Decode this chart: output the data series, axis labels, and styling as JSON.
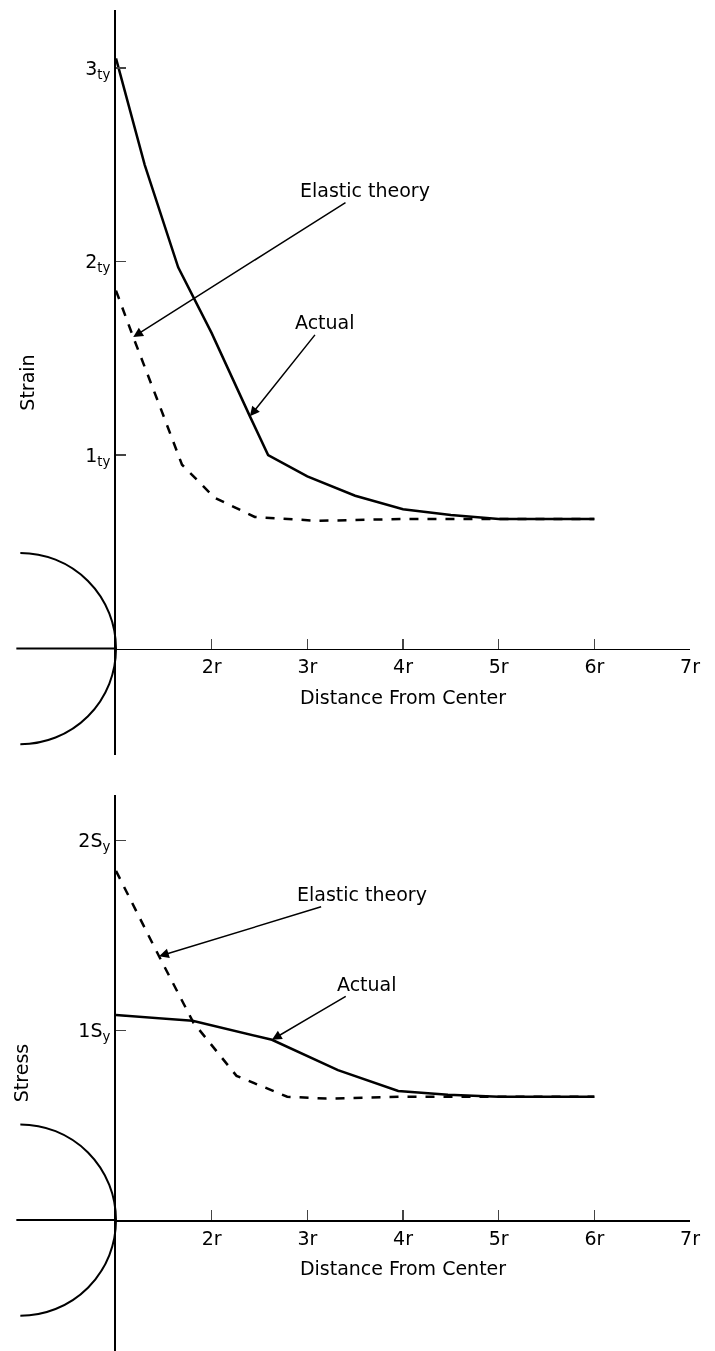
{
  "chart_data": [
    {
      "type": "line",
      "xlabel": "Distance From Center",
      "ylabel": "Strain",
      "xlim": [
        1,
        7
      ],
      "xticks": [
        {
          "value": 2,
          "label": "2r"
        },
        {
          "value": 3,
          "label": "3r"
        },
        {
          "value": 4,
          "label": "4r"
        },
        {
          "value": 5,
          "label": "5r"
        },
        {
          "value": 6,
          "label": "6r"
        },
        {
          "value": 7,
          "label": "7r"
        }
      ],
      "ylim": [
        -0.55,
        3.3
      ],
      "yticks": [
        {
          "value": 1,
          "label": "1$_{ty}$"
        },
        {
          "value": 2,
          "label": "2$_{ty}$"
        },
        {
          "value": 3,
          "label": "3$_{ty}$"
        }
      ],
      "series": [
        {
          "color": "#000000",
          "line_style": "solid",
          "x": [
            1,
            1.3,
            1.65,
            2.0,
            2.4,
            2.59,
            3.0,
            3.5,
            4.0,
            4.5,
            5,
            6
          ],
          "values": [
            3.05,
            2.5,
            1.97,
            1.63,
            1.2,
            1.0,
            0.89,
            0.79,
            0.72,
            0.69,
            0.67,
            0.67
          ]
        },
        {
          "color": "#000000",
          "line_style": "dashed",
          "x": [
            1,
            1.18,
            1.46,
            1.69,
            2.03,
            2.45,
            3.11,
            4,
            5,
            6
          ],
          "values": [
            1.85,
            1.61,
            1.25,
            0.95,
            0.78,
            0.68,
            0.66,
            0.67,
            0.67,
            0.67
          ]
        }
      ],
      "annotations": [
        {
          "text": "Elastic theory",
          "x": 1.18,
          "y": 1.61
        },
        {
          "text": "Actual",
          "x": 2.4,
          "y": 1.2
        }
      ]
    },
    {
      "type": "line",
      "xlabel": "Distance From Center",
      "ylabel": "Stress",
      "xlim": [
        1,
        7
      ],
      "xticks": [
        {
          "value": 2,
          "label": "2r"
        },
        {
          "value": 3,
          "label": "3r"
        },
        {
          "value": 4,
          "label": "4r"
        },
        {
          "value": 5,
          "label": "5r"
        },
        {
          "value": 6,
          "label": "6r"
        },
        {
          "value": 7,
          "label": "7r"
        }
      ],
      "ylim": [
        -0.69,
        2.24
      ],
      "yticks": [
        {
          "value": 1,
          "label": "1S$_{y}$"
        },
        {
          "value": 2,
          "label": "2S$_{y}$"
        }
      ],
      "series": [
        {
          "color": "#000000",
          "line_style": "dashed",
          "x": [
            1,
            1.45,
            1.81,
            2.26,
            2.79,
            3.2,
            4,
            5,
            6
          ],
          "values": [
            1.84,
            1.39,
            1.04,
            0.76,
            0.65,
            0.64,
            0.65,
            0.65,
            0.65
          ]
        },
        {
          "color": "#000000",
          "line_style": "solid",
          "x": [
            1,
            1.8,
            2.63,
            3.32,
            3.95,
            4.47,
            5,
            6
          ],
          "values": [
            1.08,
            1.05,
            0.95,
            0.79,
            0.68,
            0.66,
            0.65,
            0.65
          ]
        }
      ],
      "annotations": [
        {
          "text": "Elastic theory",
          "x": 1.45,
          "y": 1.39
        },
        {
          "text": "Actual",
          "x": 2.63,
          "y": 0.95
        }
      ]
    }
  ]
}
